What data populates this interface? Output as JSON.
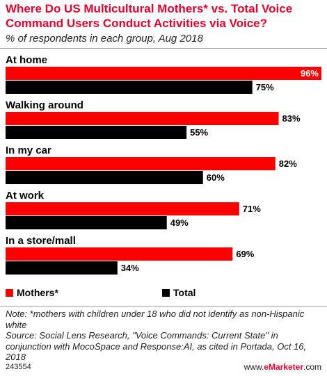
{
  "title": "Where Do US Multicultural Mothers* vs. Total Voice Command Users Conduct Activities via Voice?",
  "subtitle": "% of respondents in each group, Aug 2018",
  "colors": {
    "accent": "#e4002b",
    "mothers": "#ff0000",
    "total": "#000000"
  },
  "chart_data": {
    "type": "bar",
    "orientation": "horizontal",
    "categories": [
      "At home",
      "Walking around",
      "In my car",
      "At work",
      "In a store/mall"
    ],
    "series": [
      {
        "name": "Mothers*",
        "values": [
          96,
          83,
          82,
          71,
          69
        ],
        "labels": [
          "96%",
          "83%",
          "82%",
          "71%",
          "69%"
        ],
        "color": "#ff0000"
      },
      {
        "name": "Total",
        "values": [
          75,
          55,
          60,
          49,
          34
        ],
        "labels": [
          "75%",
          "55%",
          "60%",
          "49%",
          "34%"
        ],
        "color": "#000000"
      }
    ],
    "xlim": [
      0,
      96
    ],
    "grid": false,
    "legend_position": "bottom-left"
  },
  "legend": {
    "mothers": "Mothers*",
    "total": "Total"
  },
  "note": "Note: *mothers with children under 18 who did not identify as non-Hispanic white",
  "source": "Source: Social Lens Research, \"Voice Commands: Current State\" in conjunction with MocoSpace and Response:AI, as cited in Portada, Oct 16, 2018",
  "footer": {
    "id": "243554",
    "brand_prefix": "www.",
    "brand_name": "eMarketer",
    "brand_suffix": ".com"
  }
}
